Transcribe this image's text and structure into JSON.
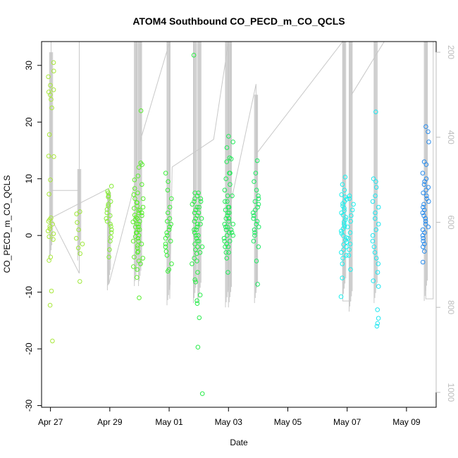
{
  "chart_data": {
    "type": "scatter",
    "title": "ATOM4 Southbound CO_PECD_m_CO_QCLS",
    "xlabel": "Date",
    "ylabel": "CO_PECD_m_CO_QCLS",
    "x_range_days": [
      -0.3,
      13.0
    ],
    "ylim": [
      -30.3,
      34.2
    ],
    "x_ticks": [
      {
        "day": 0,
        "label": "Apr 27"
      },
      {
        "day": 2,
        "label": "Apr 29"
      },
      {
        "day": 4,
        "label": "May 01"
      },
      {
        "day": 6,
        "label": "May 03"
      },
      {
        "day": 8,
        "label": "May 05"
      },
      {
        "day": 10,
        "label": "May 07"
      },
      {
        "day": 12,
        "label": "May 09"
      }
    ],
    "y_ticks": [
      -30,
      -20,
      -10,
      0,
      10,
      20,
      30
    ],
    "right_axis": {
      "quantity": "pressure",
      "range": [
        1035,
        175
      ],
      "ticks": [
        200,
        400,
        600,
        800,
        1000
      ],
      "color": "#bdbdbd"
    },
    "color_scale": "yellow-green to blue by date",
    "profiles": [
      {
        "day": 0.02,
        "color": "#a8e83a",
        "values": [
          30.5,
          29.0,
          28.0,
          26.5,
          25.7,
          25.3,
          24.8,
          24.0,
          22.5,
          17.8,
          14.0,
          13.9,
          9.8,
          7.3,
          3.1,
          2.8,
          2.5,
          2.0,
          1.6,
          1.2,
          0.8,
          0.3,
          -0.2,
          -0.7,
          -3.8,
          -4.4,
          -9.8,
          -12.3,
          -18.6
        ],
        "pressure_min": 200,
        "pressure_max": 690
      },
      {
        "day": 0.97,
        "color": "#9ee83a",
        "values": [
          4.2,
          3.8,
          2.3,
          1.0,
          -0.5,
          -1.5,
          -2.2,
          -3.2,
          -8.1
        ],
        "pressure_min": 475,
        "pressure_max": 690
      },
      {
        "day": 1.97,
        "color": "#86ec36",
        "values": [
          8.7,
          7.8,
          7.5,
          7.0,
          6.8,
          6.0,
          5.5,
          5.2,
          4.6,
          4.0,
          3.5,
          3.0,
          2.5,
          2.0,
          1.6,
          1.0,
          0.5,
          -0.3,
          -1.0,
          -2.5,
          -3.8
        ],
        "pressure_min": 530,
        "pressure_max": 760
      },
      {
        "day": 2.88,
        "color": "#62ee2e",
        "values": [
          12.0,
          9.8,
          8.3,
          7.2,
          6.5,
          5.8,
          5.2,
          4.8,
          4.4,
          4.0,
          3.6,
          3.2,
          2.8,
          2.4,
          2.0,
          1.5,
          1.0,
          0.5,
          -0.2,
          -1.0,
          -1.8,
          -2.8,
          -3.8,
          -4.5,
          -5.5,
          -7.4
        ],
        "pressure_min": 175,
        "pressure_max": 750
      },
      {
        "day": 3.02,
        "color": "#58ee2e",
        "values": [
          22.0,
          12.8,
          12.5,
          10.5,
          9.0,
          7.5,
          6.5,
          5.8,
          5.0,
          4.5,
          4.0,
          3.5,
          3.0,
          2.5,
          2.0,
          1.5,
          1.0,
          0.5,
          0.0,
          -0.5,
          -1.0,
          -1.5,
          -2.2,
          -3.0,
          -4.0,
          -5.0,
          -6.0,
          -11.0
        ],
        "pressure_min": 175,
        "pressure_max": 750
      },
      {
        "day": 3.98,
        "color": "#3aee3a",
        "values": [
          11.0,
          9.5,
          8.0,
          6.5,
          5.0,
          4.0,
          3.0,
          2.5,
          2.0,
          1.5,
          1.0,
          0.5,
          0.0,
          -0.5,
          -1.0,
          -1.5,
          -2.0,
          -2.8,
          -3.5,
          -5.0,
          -6.0,
          -6.3
        ],
        "pressure_min": 175,
        "pressure_max": 795
      },
      {
        "day": 4.87,
        "color": "#2cec46",
        "values": [
          31.8,
          7.5,
          7.0,
          6.5,
          6.0,
          5.5,
          5.0,
          4.5,
          4.0,
          3.5,
          3.0,
          2.5,
          2.0,
          1.5,
          1.0,
          0.5,
          0.0,
          -0.5,
          -1.0,
          -1.5,
          -2.0,
          -2.5,
          -3.2,
          -4.0,
          -5.0,
          -6.5,
          -7.8,
          -8.2
        ],
        "pressure_min": 175,
        "pressure_max": 790
      },
      {
        "day": 5.02,
        "color": "#28ec4a",
        "values": [
          7.5,
          6.5,
          6.0,
          5.0,
          4.0,
          3.0,
          2.0,
          1.0,
          0.0,
          -1.0,
          -2.0,
          -3.0,
          -4.5,
          -10.5,
          -11.5,
          -12.0,
          -14.5,
          -19.7,
          -27.9
        ],
        "pressure_min": 175,
        "pressure_max": 790
      },
      {
        "day": 5.95,
        "color": "#24ea58",
        "values": [
          13.7,
          13.0,
          11.0,
          10.0,
          8.0,
          7.0,
          6.0,
          5.0,
          4.5,
          4.0,
          3.5,
          3.0,
          2.5,
          2.0,
          1.5,
          1.0,
          0.5,
          0.0,
          -0.5,
          -1.0,
          -1.5,
          -2.0,
          -3.0,
          -4.0
        ],
        "pressure_min": 175,
        "pressure_max": 800
      },
      {
        "day": 6.05,
        "color": "#22ea5a",
        "values": [
          17.5,
          16.5,
          15.5,
          13.5,
          11.0,
          9.0,
          7.0,
          6.0,
          5.0,
          4.0,
          3.0,
          2.0,
          1.5,
          1.0,
          0.5,
          0.0,
          -1.0,
          -2.0,
          -3.0,
          -6.5
        ],
        "pressure_min": 175,
        "pressure_max": 800
      },
      {
        "day": 6.93,
        "color": "#20ea64",
        "values": [
          13.2,
          11.0,
          9.5,
          8.0,
          7.0,
          6.5,
          6.0,
          5.5,
          5.0,
          4.5,
          4.0,
          3.5,
          3.0,
          2.5,
          2.0,
          1.5,
          1.0,
          0.5,
          0.0,
          -1.0,
          -2.0,
          -4.5,
          -8.6
        ],
        "pressure_min": 300,
        "pressure_max": 790
      },
      {
        "day": 9.9,
        "color": "#1cf0ee",
        "values": [
          10.3,
          9.0,
          8.0,
          7.2,
          6.8,
          6.4,
          6.0,
          5.6,
          5.2,
          4.8,
          4.4,
          4.0,
          3.6,
          3.2,
          2.8,
          2.4,
          2.0,
          1.6,
          1.2,
          0.8,
          0.4,
          0.0,
          -0.4,
          -0.8,
          -1.2,
          -1.6,
          -2.0,
          -2.5,
          -3.0,
          -3.5,
          -4.0,
          -5.0,
          -7.5,
          -10.8
        ],
        "pressure_min": 175,
        "pressure_max": 780
      },
      {
        "day": 10.12,
        "color": "#1cf0ee",
        "values": [
          7.0,
          6.5,
          5.5,
          4.5,
          3.5,
          2.5,
          1.5,
          0.5,
          -0.5,
          -1.5,
          -2.5,
          -3.5,
          -6.0
        ],
        "pressure_min": 175,
        "pressure_max": 810
      },
      {
        "day": 10.96,
        "color": "#20e6f0",
        "values": [
          21.8,
          10.0,
          9.5,
          8.5,
          7.0,
          6.0,
          5.0,
          4.0,
          3.0,
          2.0,
          1.0,
          0.0,
          -1.0,
          -2.0,
          -3.0,
          -4.0,
          -5.0,
          -6.5,
          -8.0,
          -9.0,
          -13.1,
          -14.6,
          -15.5,
          -16.0
        ],
        "pressure_min": 175,
        "pressure_max": 790
      },
      {
        "day": 12.65,
        "color": "#2a8cec",
        "values": [
          19.2,
          18.3,
          16.5,
          13.0,
          12.5,
          11.0,
          10.0,
          9.5,
          9.0,
          8.5,
          8.0,
          7.5,
          7.0,
          6.5,
          6.0,
          5.5,
          5.0,
          4.5,
          4.0,
          3.5,
          3.0,
          2.5,
          2.0,
          1.5,
          1.0,
          0.5,
          0.0,
          -0.5,
          -1.0,
          -1.5,
          -2.0,
          -2.8,
          -4.7
        ],
        "pressure_min": 175,
        "pressure_max": 785
      }
    ],
    "pressure_trace": [
      {
        "day": -0.3,
        "pressure": 175
      },
      {
        "day": 0.02,
        "pressure": 175
      },
      {
        "day": 0.02,
        "pressure": 590
      },
      {
        "day": 0.97,
        "pressure": 720
      },
      {
        "day": 0.97,
        "pressure": 175
      },
      {
        "day": 0.97,
        "pressure": 525
      },
      {
        "day": 0.02,
        "pressure": 525
      },
      {
        "day": 0.02,
        "pressure": 590
      },
      {
        "day": 1.97,
        "pressure": 520
      },
      {
        "day": 1.97,
        "pressure": 745
      },
      {
        "day": 2.88,
        "pressure": 500
      },
      {
        "day": 2.88,
        "pressure": 175
      },
      {
        "day": 3.02,
        "pressure": 175
      },
      {
        "day": 3.02,
        "pressure": 410
      },
      {
        "day": 4.02,
        "pressure": 175
      },
      {
        "day": 4.02,
        "pressure": 780
      },
      {
        "day": 4.1,
        "pressure": 470
      },
      {
        "day": 5.5,
        "pressure": 405
      },
      {
        "day": 6.0,
        "pressure": 175
      },
      {
        "day": 6.0,
        "pressure": 760
      },
      {
        "day": 6.0,
        "pressure": 275
      },
      {
        "day": 6.0,
        "pressure": 580
      },
      {
        "day": 6.93,
        "pressure": 275
      },
      {
        "day": 6.93,
        "pressure": 760
      },
      {
        "day": 6.93,
        "pressure": 440
      },
      {
        "day": 9.85,
        "pressure": 175
      },
      {
        "day": 9.85,
        "pressure": 785
      },
      {
        "day": 10.12,
        "pressure": 785
      },
      {
        "day": 10.12,
        "pressure": 175
      },
      {
        "day": 10.15,
        "pressure": 300
      },
      {
        "day": 11.25,
        "pressure": 175
      },
      {
        "day": 12.65,
        "pressure": 175
      },
      {
        "day": 12.65,
        "pressure": 780
      },
      {
        "day": 12.9,
        "pressure": 780
      },
      {
        "day": 12.9,
        "pressure": 175
      }
    ]
  }
}
